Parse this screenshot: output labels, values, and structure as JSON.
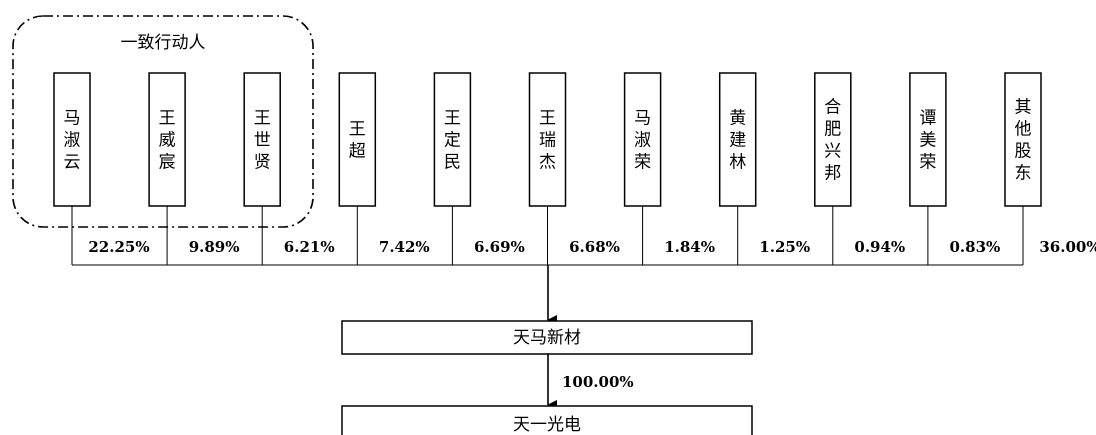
{
  "group": {
    "label": "一致行动人"
  },
  "shareholders": [
    {
      "name": "马淑云",
      "percent": "22.25%"
    },
    {
      "name": "王威宸",
      "percent": "9.89%"
    },
    {
      "name": "王世贤",
      "percent": "6.21%"
    },
    {
      "name": "王超",
      "percent": "7.42%"
    },
    {
      "name": "王定民",
      "percent": "6.69%"
    },
    {
      "name": "王瑞杰",
      "percent": "6.68%"
    },
    {
      "name": "马淑荣",
      "percent": "1.84%"
    },
    {
      "name": "黄建林",
      "percent": "1.25%"
    },
    {
      "name": "合肥兴邦",
      "percent": "0.94%"
    },
    {
      "name": "谭美荣",
      "percent": "0.83%"
    },
    {
      "name": "其他股东",
      "percent": "36.00%"
    }
  ],
  "parent": {
    "name": "天马新材"
  },
  "subsidiary": {
    "name": "天一光电",
    "percent": "100.00%"
  }
}
